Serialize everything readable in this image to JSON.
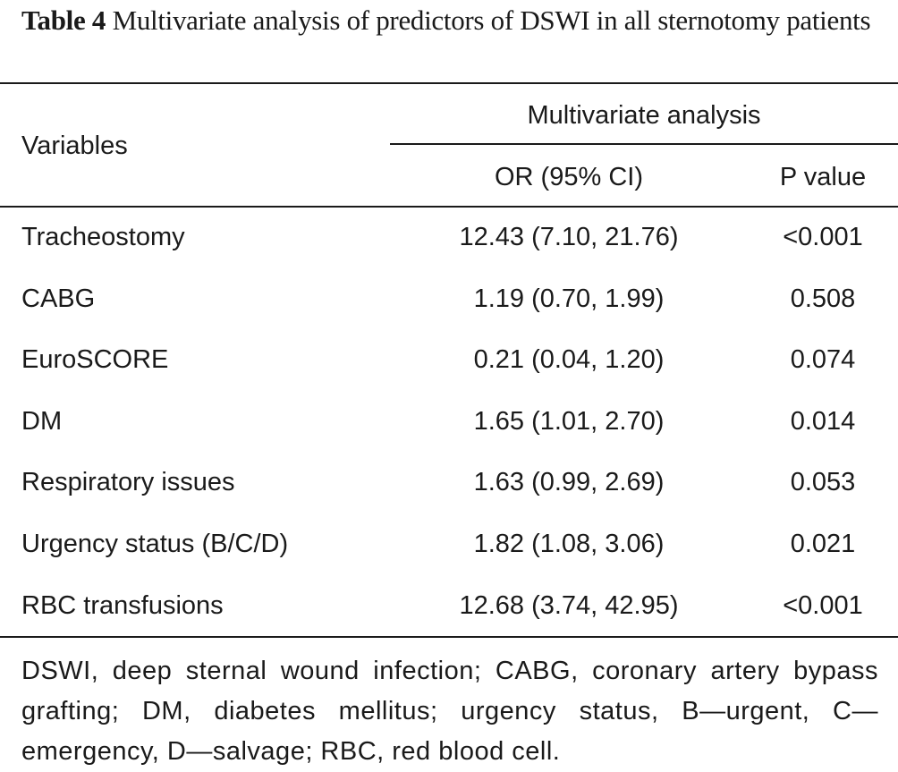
{
  "caption": {
    "label": "Table 4",
    "text": "Multivariate analysis of predictors of DSWI in all sternotomy patients"
  },
  "header": {
    "variables": "Variables",
    "group": "Multivariate analysis",
    "or": "OR (95% CI)",
    "p": "P value"
  },
  "rows": [
    {
      "variable": "Tracheostomy",
      "or": "12.43 (7.10, 21.76)",
      "p": "<0.001"
    },
    {
      "variable": "CABG",
      "or": "1.19 (0.70, 1.99)",
      "p": "0.508"
    },
    {
      "variable": "EuroSCORE",
      "or": "0.21 (0.04, 1.20)",
      "p": "0.074"
    },
    {
      "variable": "DM",
      "or": "1.65 (1.01, 2.70)",
      "p": "0.014"
    },
    {
      "variable": "Respiratory issues",
      "or": "1.63 (0.99, 2.69)",
      "p": "0.053"
    },
    {
      "variable": "Urgency status (B/C/D)",
      "or": "1.82 (1.08, 3.06)",
      "p": "0.021"
    },
    {
      "variable": "RBC transfusions",
      "or": "12.68 (3.74, 42.95)",
      "p": "<0.001"
    }
  ],
  "footnote": "DSWI, deep sternal wound infection; CABG, coronary artery bypass grafting; DM, diabetes mellitus; urgency status, B—urgent, C—emergency, D—salvage; RBC, red blood cell."
}
